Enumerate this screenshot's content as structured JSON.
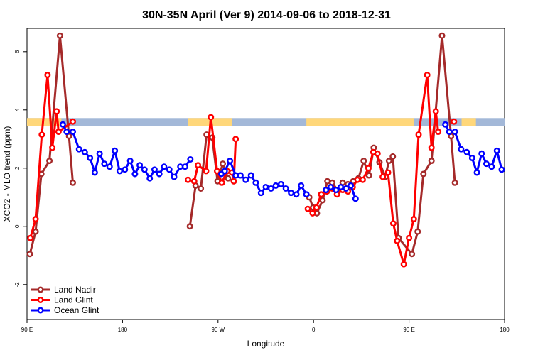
{
  "chart_data": {
    "type": "line",
    "title": "30N-35N April (Ver 9)   2014-09-06 to 2018-12-31",
    "xlabel": "Longitude",
    "ylabel": "XCO2 - MLO trend (ppm)",
    "xlim": [
      0,
      100
    ],
    "ylim": [
      -3.2,
      6.8
    ],
    "x_ticks": [
      {
        "pos": 0,
        "label": "90 E"
      },
      {
        "pos": 20,
        "label": "180"
      },
      {
        "pos": 40,
        "label": "90 W"
      },
      {
        "pos": 60,
        "label": "0"
      },
      {
        "pos": 80,
        "label": "90 E"
      },
      {
        "pos": 100,
        "label": "180"
      }
    ],
    "y_ticks": [
      -2,
      0,
      2,
      4,
      6
    ],
    "legend_position": "bottom-left",
    "band": {
      "y_low": 3.45,
      "y_high": 3.72,
      "ocean_color": "#a3b8d8",
      "land_color": "#ffd77a",
      "land_ranges": [
        [
          0,
          7.2
        ],
        [
          33.7,
          43
        ],
        [
          58.5,
          81.1
        ],
        [
          91,
          94
        ]
      ]
    },
    "series": [
      {
        "name": "Land Nadir",
        "color": "#a52a2a",
        "points": [
          [
            0.6,
            -0.95
          ],
          [
            1.8,
            -0.18
          ],
          [
            3.0,
            1.8
          ],
          [
            4.7,
            2.25
          ],
          [
            6.9,
            6.55
          ],
          [
            8.8,
            3.1
          ],
          [
            9.6,
            1.5
          ],
          [
            34.1,
            0.0
          ],
          [
            35.3,
            1.4
          ],
          [
            36.4,
            1.3
          ],
          [
            37.6,
            3.15
          ],
          [
            38.8,
            3.05
          ],
          [
            39.9,
            1.55
          ],
          [
            41.0,
            2.15
          ],
          [
            42.1,
            1.65
          ],
          [
            43.3,
            1.55
          ],
          [
            59.1,
            1.0
          ],
          [
            59.9,
            0.65
          ],
          [
            60.7,
            0.45
          ],
          [
            61.9,
            0.9
          ],
          [
            62.9,
            1.55
          ],
          [
            63.9,
            1.5
          ],
          [
            65.0,
            1.25
          ],
          [
            66.1,
            1.5
          ],
          [
            67.2,
            1.45
          ],
          [
            68.3,
            1.55
          ],
          [
            69.4,
            1.65
          ],
          [
            70.5,
            2.25
          ],
          [
            71.6,
            1.75
          ],
          [
            72.6,
            2.7
          ],
          [
            73.8,
            2.2
          ],
          [
            75.0,
            1.7
          ],
          [
            75.8,
            2.25
          ],
          [
            76.6,
            2.4
          ],
          [
            77.8,
            -0.4
          ],
          [
            80.6,
            -0.95
          ],
          [
            81.8,
            -0.18
          ],
          [
            83.0,
            1.8
          ],
          [
            84.7,
            2.25
          ],
          [
            86.9,
            6.55
          ],
          [
            88.8,
            3.1
          ],
          [
            89.6,
            1.5
          ]
        ]
      },
      {
        "name": "Land Glint",
        "color": "#ff0000",
        "points": [
          [
            0.7,
            -0.4
          ],
          [
            1.8,
            0.25
          ],
          [
            3.1,
            3.15
          ],
          [
            4.3,
            5.2
          ],
          [
            5.3,
            2.7
          ],
          [
            6.2,
            3.95
          ],
          [
            6.6,
            3.25
          ],
          [
            9.6,
            3.6
          ],
          [
            33.7,
            1.6
          ],
          [
            35.0,
            1.55
          ],
          [
            35.8,
            2.1
          ],
          [
            37.5,
            1.9
          ],
          [
            38.5,
            3.75
          ],
          [
            39.8,
            1.9
          ],
          [
            40.8,
            1.5
          ],
          [
            41.9,
            1.9
          ],
          [
            42.9,
            1.85
          ],
          [
            43.3,
            1.55
          ],
          [
            43.7,
            3.0
          ],
          [
            58.8,
            0.6
          ],
          [
            59.8,
            0.45
          ],
          [
            60.6,
            0.65
          ],
          [
            61.6,
            1.1
          ],
          [
            62.8,
            1.2
          ],
          [
            63.9,
            1.3
          ],
          [
            64.9,
            1.1
          ],
          [
            66.1,
            1.25
          ],
          [
            67.2,
            1.2
          ],
          [
            68.2,
            1.35
          ],
          [
            69.2,
            1.6
          ],
          [
            70.3,
            1.6
          ],
          [
            71.5,
            2.0
          ],
          [
            72.5,
            2.55
          ],
          [
            73.4,
            2.5
          ],
          [
            74.5,
            1.7
          ],
          [
            75.6,
            1.85
          ],
          [
            76.7,
            0.1
          ],
          [
            77.5,
            -0.5
          ],
          [
            78.9,
            -1.3
          ],
          [
            80.0,
            -0.4
          ],
          [
            81.0,
            0.25
          ],
          [
            82.0,
            3.15
          ],
          [
            83.8,
            5.2
          ],
          [
            84.7,
            2.7
          ],
          [
            85.6,
            3.95
          ],
          [
            86.1,
            3.25
          ],
          [
            89.4,
            3.6
          ]
        ]
      },
      {
        "name": "Ocean Glint",
        "color": "#0000ff",
        "points": [
          [
            7.5,
            3.5
          ],
          [
            8.3,
            3.25
          ],
          [
            9.6,
            3.25
          ],
          [
            10.9,
            2.65
          ],
          [
            12.1,
            2.55
          ],
          [
            13.2,
            2.35
          ],
          [
            14.2,
            1.85
          ],
          [
            15.2,
            2.5
          ],
          [
            16.2,
            2.15
          ],
          [
            17.3,
            2.05
          ],
          [
            18.4,
            2.6
          ],
          [
            19.4,
            1.9
          ],
          [
            20.5,
            1.95
          ],
          [
            21.6,
            2.25
          ],
          [
            22.6,
            1.8
          ],
          [
            23.6,
            2.1
          ],
          [
            24.6,
            1.95
          ],
          [
            25.7,
            1.65
          ],
          [
            26.7,
            1.95
          ],
          [
            27.7,
            1.8
          ],
          [
            28.7,
            2.05
          ],
          [
            29.8,
            1.95
          ],
          [
            30.8,
            1.7
          ],
          [
            32.1,
            2.05
          ],
          [
            33.1,
            2.05
          ],
          [
            34.2,
            2.3
          ],
          [
            40.7,
            1.8
          ],
          [
            41.4,
            1.9
          ],
          [
            42.5,
            2.25
          ],
          [
            43.7,
            1.75
          ],
          [
            44.7,
            1.75
          ],
          [
            45.8,
            1.6
          ],
          [
            46.9,
            1.75
          ],
          [
            47.9,
            1.5
          ],
          [
            49.0,
            1.15
          ],
          [
            50.0,
            1.35
          ],
          [
            51.1,
            1.3
          ],
          [
            52.1,
            1.4
          ],
          [
            53.2,
            1.45
          ],
          [
            54.2,
            1.3
          ],
          [
            55.3,
            1.15
          ],
          [
            56.4,
            1.1
          ],
          [
            57.4,
            1.4
          ],
          [
            58.5,
            1.1
          ],
          [
            62.6,
            1.25
          ],
          [
            63.6,
            1.35
          ],
          [
            64.7,
            1.25
          ],
          [
            65.7,
            1.35
          ],
          [
            66.8,
            1.3
          ],
          [
            67.8,
            1.4
          ],
          [
            68.8,
            0.95
          ],
          [
            87.6,
            3.5
          ],
          [
            88.4,
            3.25
          ],
          [
            89.6,
            3.25
          ],
          [
            90.9,
            2.65
          ],
          [
            92.1,
            2.55
          ],
          [
            93.2,
            2.35
          ],
          [
            94.2,
            1.85
          ],
          [
            95.2,
            2.5
          ],
          [
            96.2,
            2.15
          ],
          [
            97.3,
            2.05
          ],
          [
            98.4,
            2.6
          ],
          [
            99.4,
            1.95
          ]
        ]
      }
    ]
  }
}
